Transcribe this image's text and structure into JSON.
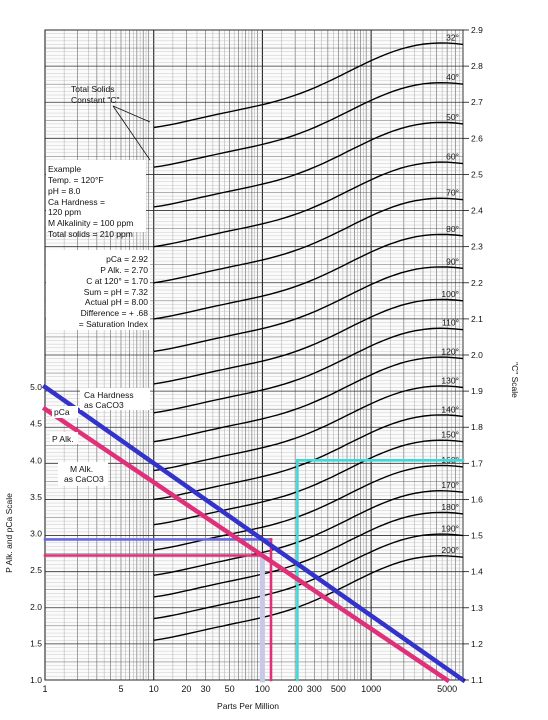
{
  "chart_data": {
    "type": "line",
    "title": "",
    "xlabel": "Parts Per Million",
    "ylabel_left": "P Alk. and pCa Scale",
    "ylabel_right": "\"C\" Scale",
    "x_scale": "log",
    "x_range": [
      1,
      7000
    ],
    "x_ticks": [
      {
        "v": 1,
        "label": "1"
      },
      {
        "v": 5,
        "label": "5"
      },
      {
        "v": 10,
        "label": "10"
      },
      {
        "v": 20,
        "label": "20"
      },
      {
        "v": 30,
        "label": "30"
      },
      {
        "v": 50,
        "label": "50"
      },
      {
        "v": 100,
        "label": "100"
      },
      {
        "v": 200,
        "label": "200"
      },
      {
        "v": 300,
        "label": "300"
      },
      {
        "v": 500,
        "label": "500"
      },
      {
        "v": 1000,
        "label": "1000"
      },
      {
        "v": 5000,
        "label": "5000"
      }
    ],
    "y_left_range": [
      1.0,
      5.0
    ],
    "y_left_ticks": [
      "1.0",
      "1.5",
      "2.0",
      "2.5",
      "3.0",
      "3.5",
      "4.0",
      "4.5",
      "5.0"
    ],
    "y_right_range": [
      1.1,
      2.9
    ],
    "y_right_ticks": [
      "1.1",
      "1.2",
      "1.3",
      "1.4",
      "1.5",
      "1.6",
      "1.7",
      "1.8",
      "1.9",
      "2.0",
      "2.1",
      "2.2",
      "2.3",
      "2.4",
      "2.5",
      "2.6",
      "2.7",
      "2.8",
      "2.9"
    ],
    "grid": true,
    "temperature_curves": [
      {
        "label": "32°",
        "c_start": 2.63,
        "c_end": 2.86
      },
      {
        "label": "40°",
        "c_start": 2.52,
        "c_end": 2.75
      },
      {
        "label": "50°",
        "c_start": 2.41,
        "c_end": 2.64
      },
      {
        "label": "60°",
        "c_start": 2.3,
        "c_end": 2.53
      },
      {
        "label": "70°",
        "c_start": 2.2,
        "c_end": 2.43
      },
      {
        "label": "80°",
        "c_start": 2.1,
        "c_end": 2.33
      },
      {
        "label": "90°",
        "c_start": 2.01,
        "c_end": 2.24
      },
      {
        "label": "100°",
        "c_start": 1.92,
        "c_end": 2.15
      },
      {
        "label": "110°",
        "c_start": 1.84,
        "c_end": 2.07
      },
      {
        "label": "120°",
        "c_start": 1.76,
        "c_end": 1.99
      },
      {
        "label": "130°",
        "c_start": 1.68,
        "c_end": 1.91
      },
      {
        "label": "140°",
        "c_start": 1.6,
        "c_end": 1.83
      },
      {
        "label": "150°",
        "c_start": 1.53,
        "c_end": 1.76
      },
      {
        "label": "160°",
        "c_start": 1.46,
        "c_end": 1.69
      },
      {
        "label": "170°",
        "c_start": 1.39,
        "c_end": 1.62
      },
      {
        "label": "180°",
        "c_start": 1.33,
        "c_end": 1.56
      },
      {
        "label": "190°",
        "c_start": 1.27,
        "c_end": 1.5
      },
      {
        "label": "200°",
        "c_start": 1.21,
        "c_end": 1.44
      }
    ],
    "series": [
      {
        "name": "Ca Hardness as CaCO3 (pCa)",
        "color": "#3333cc",
        "x": [
          1,
          7000
        ],
        "y": [
          5.0,
          1.0
        ]
      },
      {
        "name": "M Alk. as CaCO3 (P Alk.)",
        "color": "#e0307a",
        "x": [
          1,
          5000
        ],
        "y": [
          4.7,
          1.0
        ]
      }
    ],
    "example_lines": [
      {
        "name": "Ca hardness 120 ppm to pCa 2.92",
        "color": "#6a6ae0",
        "x": [
          1,
          120
        ],
        "y": [
          2.92,
          2.92
        ]
      },
      {
        "name": "M alkalinity 100 ppm to P Alk. 2.70",
        "color": "#e0307a",
        "x": [
          1,
          100
        ],
        "y": [
          2.7,
          2.7
        ]
      },
      {
        "name": "Ca hardness 120 ppm vertical",
        "color": "#e0307a",
        "x": [
          120,
          120
        ],
        "y": [
          1.0,
          2.92
        ]
      },
      {
        "name": "M alkalinity 100 ppm vertical",
        "color": "#c8c8e8",
        "x": [
          100,
          100
        ],
        "y": [
          1.0,
          2.7
        ]
      },
      {
        "name": "Total solids 210 ppm vertical",
        "color": "#40d8d8",
        "x": [
          210,
          210
        ],
        "y": [
          1.0,
          4.0
        ]
      },
      {
        "name": "Total solids C = 1.70",
        "color": "#40d8d8",
        "x": [
          210,
          7000
        ],
        "y": [
          4.0,
          4.0
        ]
      }
    ],
    "annotations": {
      "total_solids_label": [
        "Total Solids",
        "Constant \"C\""
      ],
      "example_block": [
        "Example",
        "Temp. = 120°F",
        "pH = 8.0",
        "Ca Hardness =",
        "120 ppm",
        "M Alkalinity = 100 ppm",
        "Total solids = 210 ppm"
      ],
      "result_block": [
        "pCa = 2.92",
        "P Alk. = 2.70",
        "C at 120° = 1.70",
        "Sum = pH = 7.32",
        "Actual pH = 8.00",
        "Difference = + .68",
        "= Saturation Index"
      ],
      "ca_hardness_label": [
        "Ca Hardness",
        "as CaCO3"
      ],
      "pca_label": "pCa",
      "palk_label": "P Alk.",
      "m_alk_label": [
        "M Alk.",
        "as CaCO3"
      ]
    }
  }
}
